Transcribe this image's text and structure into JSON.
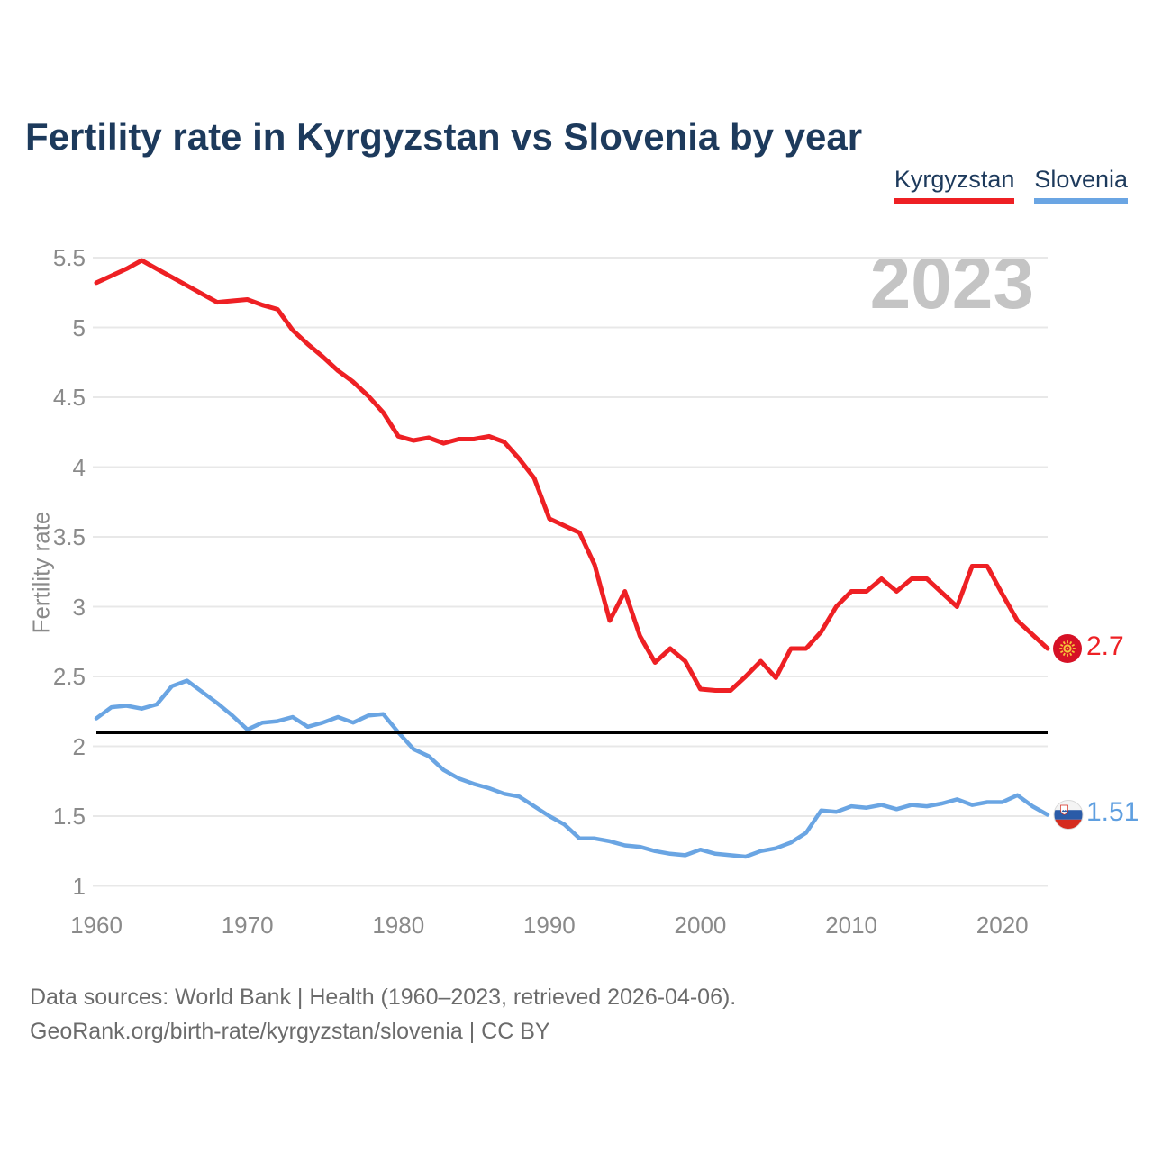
{
  "title": "Fertility rate in Kyrgyzstan vs Slovenia by year",
  "watermark": "2023",
  "legend": [
    {
      "label": "Kyrgyzstan",
      "color": "#ee2024"
    },
    {
      "label": "Slovenia",
      "color": "#6aa5e3"
    }
  ],
  "end_labels": {
    "kyrgyzstan": "2.7",
    "slovenia": "1.51"
  },
  "reference_line": {
    "value": 2.1,
    "color": "#000000"
  },
  "footer": {
    "line1": "Data sources: World Bank | Health (1960–2023, retrieved 2026-04-06).",
    "line2": "GeoRank.org/birth-rate/kyrgyzstan/slovenia | CC BY"
  },
  "icons": {
    "kyrgyzstan_marker": "kyrgyzstan-flag-icon",
    "slovenia_marker": "slovenia-flag-icon"
  },
  "chart_data": {
    "type": "line",
    "title": "Fertility rate in Kyrgyzstan vs Slovenia by year",
    "xlabel": "",
    "ylabel": "Fertility rate",
    "ylim": [
      1.0,
      5.5
    ],
    "xlim": [
      1960,
      2023
    ],
    "grid": true,
    "legend_position": "top-right",
    "yticks": [
      1,
      1.5,
      2,
      2.5,
      3,
      3.5,
      4,
      4.5,
      5,
      5.5
    ],
    "xticks": [
      1960,
      1970,
      1980,
      1990,
      2000,
      2010,
      2020
    ],
    "x": [
      1960,
      1961,
      1962,
      1963,
      1964,
      1965,
      1966,
      1967,
      1968,
      1969,
      1970,
      1971,
      1972,
      1973,
      1974,
      1975,
      1976,
      1977,
      1978,
      1979,
      1980,
      1981,
      1982,
      1983,
      1984,
      1985,
      1986,
      1987,
      1988,
      1989,
      1990,
      1991,
      1992,
      1993,
      1994,
      1995,
      1996,
      1997,
      1998,
      1999,
      2000,
      2001,
      2002,
      2003,
      2004,
      2005,
      2006,
      2007,
      2008,
      2009,
      2010,
      2011,
      2012,
      2013,
      2014,
      2015,
      2016,
      2017,
      2018,
      2019,
      2020,
      2021,
      2022,
      2023
    ],
    "series": [
      {
        "name": "Kyrgyzstan",
        "color": "#ee2024",
        "final_value": 2.7,
        "values": [
          5.32,
          5.37,
          5.42,
          5.48,
          5.42,
          5.36,
          5.3,
          5.24,
          5.18,
          5.19,
          5.2,
          5.16,
          5.13,
          4.98,
          4.88,
          4.79,
          4.69,
          4.61,
          4.51,
          4.39,
          4.22,
          4.19,
          4.21,
          4.17,
          4.2,
          4.2,
          4.22,
          4.18,
          4.06,
          3.92,
          3.63,
          3.58,
          3.53,
          3.3,
          2.9,
          3.11,
          2.79,
          2.6,
          2.7,
          2.61,
          2.41,
          2.4,
          2.4,
          2.5,
          2.61,
          2.49,
          2.7,
          2.7,
          2.82,
          3.0,
          3.11,
          3.11,
          3.2,
          3.11,
          3.2,
          3.2,
          3.1,
          3.0,
          3.29,
          3.29,
          3.09,
          2.9,
          2.8,
          2.7
        ]
      },
      {
        "name": "Slovenia",
        "color": "#6aa5e3",
        "final_value": 1.51,
        "values": [
          2.2,
          2.28,
          2.29,
          2.27,
          2.3,
          2.43,
          2.47,
          2.39,
          2.31,
          2.22,
          2.12,
          2.17,
          2.18,
          2.21,
          2.14,
          2.17,
          2.21,
          2.17,
          2.22,
          2.23,
          2.1,
          1.98,
          1.93,
          1.83,
          1.77,
          1.73,
          1.7,
          1.66,
          1.64,
          1.57,
          1.5,
          1.44,
          1.34,
          1.34,
          1.32,
          1.29,
          1.28,
          1.25,
          1.23,
          1.22,
          1.26,
          1.23,
          1.22,
          1.21,
          1.25,
          1.27,
          1.31,
          1.38,
          1.54,
          1.53,
          1.57,
          1.56,
          1.58,
          1.55,
          1.58,
          1.57,
          1.59,
          1.62,
          1.58,
          1.6,
          1.6,
          1.65,
          1.57,
          1.51
        ]
      }
    ]
  }
}
